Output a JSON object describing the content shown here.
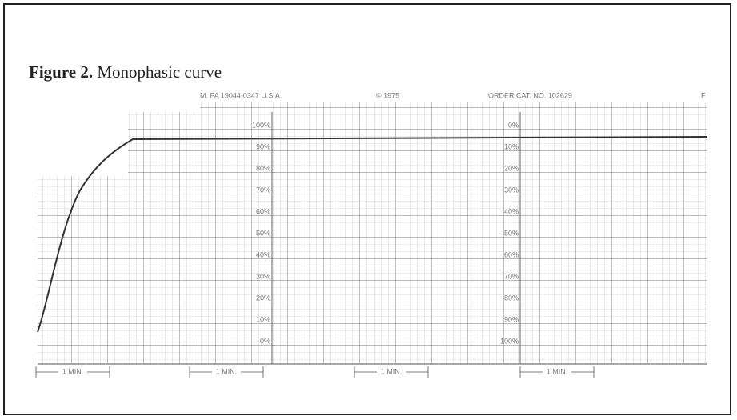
{
  "caption": {
    "label": "Figure 2.",
    "title": "Monophasic curve"
  },
  "chart_paper": {
    "header": [
      "M. PA 19044-0347 U.S.A.",
      "© 1975",
      "ORDER CAT. NO. 102629",
      "F"
    ],
    "left_scale": [
      "100%",
      "90%",
      "80%",
      "70%",
      "60%",
      "50%",
      "40%",
      "30%",
      "20%",
      "10%",
      "0%"
    ],
    "right_scale": [
      "0%",
      "10%",
      "20%",
      "30%",
      "40%",
      "50%",
      "60%",
      "70%",
      "80%",
      "90%",
      "100%"
    ],
    "time_marks": [
      "1 MIN.",
      "1 MIN.",
      "1 MIN.",
      "1 MIN."
    ]
  }
}
